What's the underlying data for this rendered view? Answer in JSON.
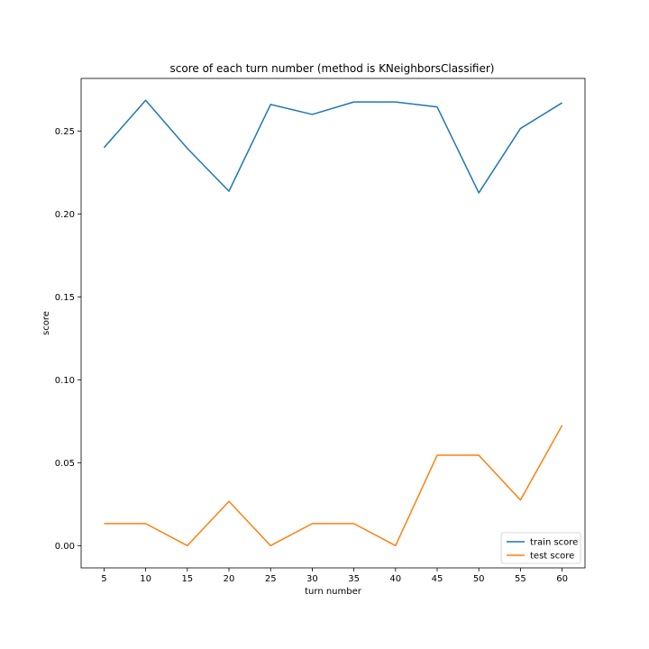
{
  "chart_data": {
    "type": "line",
    "title": "score of each turn number (method is KNeighborsClassifier)",
    "xlabel": "turn number",
    "ylabel": "score",
    "x": [
      5,
      10,
      15,
      20,
      25,
      30,
      35,
      40,
      45,
      50,
      55,
      60
    ],
    "xticks": [
      "5",
      "10",
      "15",
      "20",
      "25",
      "30",
      "35",
      "40",
      "45",
      "50",
      "55",
      "60"
    ],
    "yticks": [
      "0.00",
      "0.05",
      "0.10",
      "0.15",
      "0.20",
      "0.25"
    ],
    "xlim": [
      2.25,
      62.75
    ],
    "ylim": [
      -0.0134,
      0.2817
    ],
    "grid": false,
    "legend_position": "lower-right",
    "series": [
      {
        "name": "train score",
        "color": "#1f77b4",
        "values": [
          0.24,
          0.2685,
          0.2395,
          0.2137,
          0.266,
          0.26,
          0.2675,
          0.2675,
          0.2645,
          0.2127,
          0.2515,
          0.267
        ]
      },
      {
        "name": "test score",
        "color": "#ff7f0e",
        "values": [
          0.0133,
          0.0133,
          0.0,
          0.0267,
          0.0,
          0.0133,
          0.0133,
          0.0,
          0.0545,
          0.0545,
          0.0275,
          0.0725
        ]
      }
    ]
  }
}
